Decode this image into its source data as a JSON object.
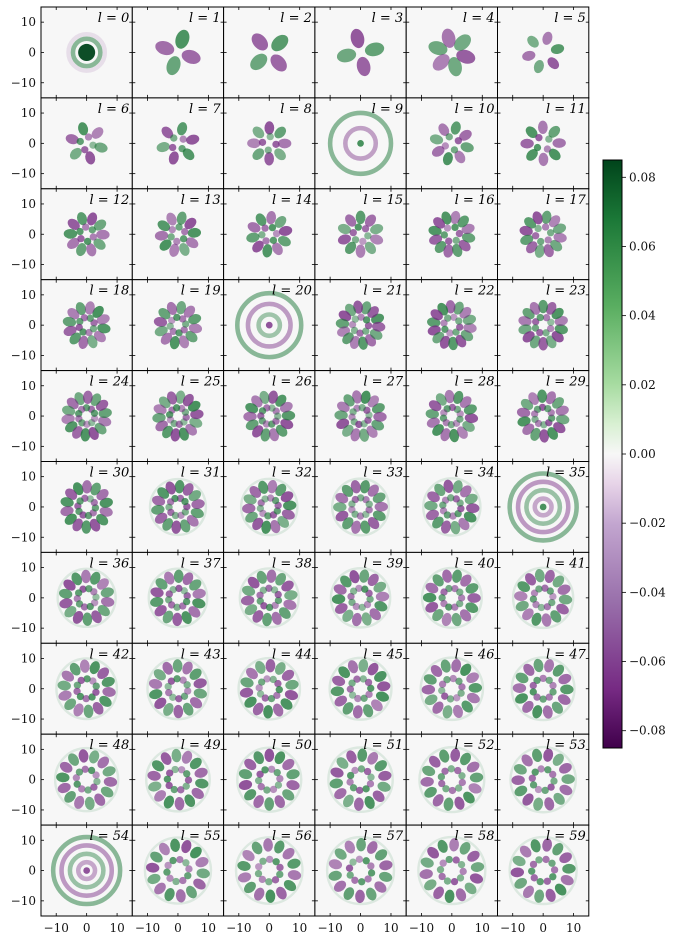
{
  "chart_data": {
    "type": "heatmap",
    "panel_grid": {
      "rows": 10,
      "cols": 6
    },
    "panel_label_prefix": "l = ",
    "panel_indices": [
      0,
      1,
      2,
      3,
      4,
      5,
      6,
      7,
      8,
      9,
      10,
      11,
      12,
      13,
      14,
      15,
      16,
      17,
      18,
      19,
      20,
      21,
      22,
      23,
      24,
      25,
      26,
      27,
      28,
      29,
      30,
      31,
      32,
      33,
      34,
      35,
      36,
      37,
      38,
      39,
      40,
      41,
      42,
      43,
      44,
      45,
      46,
      47,
      48,
      49,
      50,
      51,
      52,
      53,
      54,
      55,
      56,
      57,
      58,
      59
    ],
    "x_ticks": [
      "−10",
      "0",
      "10"
    ],
    "y_ticks": [
      "10",
      "0",
      "−10"
    ],
    "xlim": [
      -15,
      15
    ],
    "ylim": [
      -15,
      15
    ],
    "colormap": {
      "name": "PRGn",
      "low_color": "#40004b",
      "mid_color": "#f7f7f7",
      "high_color": "#00441b",
      "range": [
        -0.085,
        0.085
      ]
    },
    "colorbar_ticks": [
      "0.08",
      "0.06",
      "0.04",
      "0.02",
      "0.00",
      "−0.02",
      "−0.04",
      "−0.06",
      "−0.08"
    ],
    "colorbar_tick_values": [
      0.08,
      0.06,
      0.04,
      0.02,
      0.0,
      -0.02,
      -0.04,
      -0.06,
      -0.08
    ]
  }
}
